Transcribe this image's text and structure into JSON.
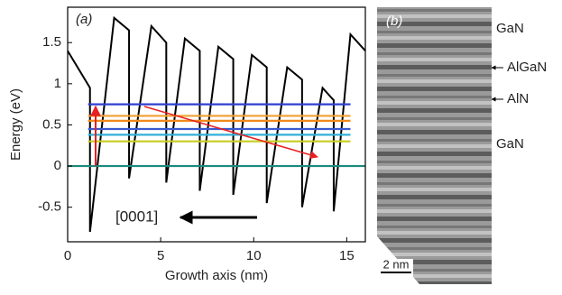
{
  "chart_data": {
    "type": "line",
    "panel_label": "(a)",
    "xlabel": "Growth axis (nm)",
    "ylabel": "Energy (eV)",
    "xlim": [
      0,
      16
    ],
    "ylim": [
      -0.92,
      1.93
    ],
    "xticks": [
      0,
      5,
      10,
      15
    ],
    "yticks": [
      -0.5,
      0,
      0.5,
      1,
      1.5
    ],
    "direction_label": "[0001]",
    "series": [
      {
        "color": "#000000",
        "x": [
          0,
          1.2,
          1.2,
          2.5,
          3.3,
          3.3,
          4.5,
          5.3,
          5.3,
          6.3,
          7.1,
          7.1,
          8.1,
          8.9,
          8.9,
          9.9,
          10.7,
          10.7,
          11.8,
          12.6,
          12.6,
          13.7,
          14.3,
          14.3,
          15.2,
          16
        ],
        "values": [
          1.4,
          0.95,
          -0.8,
          1.8,
          1.65,
          -0.15,
          1.7,
          1.5,
          -0.2,
          1.55,
          1.4,
          -0.3,
          1.45,
          1.3,
          -0.35,
          1.35,
          1.2,
          -0.45,
          1.2,
          1.05,
          -0.5,
          0.95,
          0.8,
          -0.55,
          1.6,
          1.4
        ]
      },
      {
        "color": "#1a8a7a",
        "x": [
          0,
          16
        ],
        "values": [
          0,
          0
        ]
      },
      {
        "color": "#c8cc1e",
        "x": [
          1.1,
          15.2
        ],
        "values": [
          0.3,
          0.3
        ]
      },
      {
        "color": "#30b0d8",
        "x": [
          1.1,
          15.2
        ],
        "values": [
          0.38,
          0.38
        ]
      },
      {
        "color": "#3a5ad0",
        "x": [
          1.1,
          15.2
        ],
        "values": [
          0.45,
          0.45
        ]
      },
      {
        "color": "#f08a1a",
        "x": [
          1.1,
          15.2
        ],
        "values": [
          0.55,
          0.55
        ]
      },
      {
        "color": "#f0a030",
        "x": [
          1.1,
          15.2
        ],
        "values": [
          0.61,
          0.61
        ]
      },
      {
        "color": "#2f3fd0",
        "x": [
          1.1,
          15.2
        ],
        "values": [
          0.75,
          0.75
        ]
      }
    ]
  },
  "panel_b": {
    "panel_label": "(b)",
    "annotations": [
      "GaN",
      "AlGaN",
      "AlN",
      "GaN"
    ],
    "scale_bar": "2 nm"
  }
}
